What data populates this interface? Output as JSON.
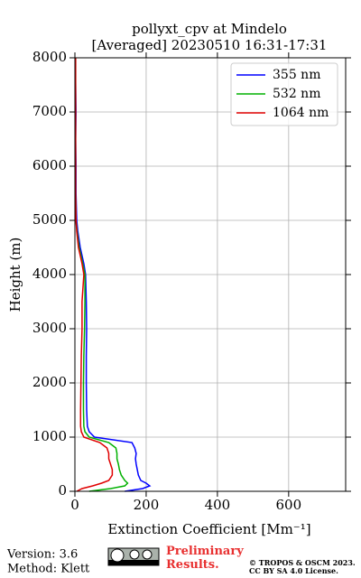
{
  "chart_data": {
    "type": "profile",
    "title": "pollyxt_cpv at Mindelo",
    "subtitle": "[Averaged] 20230510 16:31-17:31",
    "xlabel": "Extinction Coefficient [Mm⁻¹]",
    "ylabel": "Height (m)",
    "xlim": [
      0,
      760
    ],
    "xticks": [
      0,
      200,
      400,
      600
    ],
    "ylim": [
      0,
      8000
    ],
    "yticks": [
      0,
      1000,
      2000,
      3000,
      4000,
      5000,
      6000,
      7000,
      8000
    ],
    "grid": true,
    "legend": "upper right",
    "y": [
      0,
      50,
      100,
      150,
      200,
      300,
      400,
      500,
      600,
      700,
      800,
      900,
      1000,
      1100,
      1200,
      1500,
      2000,
      2500,
      3000,
      3500,
      4000,
      4200,
      4500,
      4800,
      5000,
      5500,
      6000,
      6500,
      7000,
      7500,
      8000
    ],
    "series": [
      {
        "name": "355 nm",
        "color": "#0000ff",
        "values": [
          140,
          190,
          210,
          200,
          185,
          178,
          175,
          172,
          170,
          172,
          168,
          160,
          55,
          40,
          35,
          33,
          32,
          32,
          33,
          32,
          30,
          25,
          15,
          8,
          5,
          3,
          3,
          2,
          3,
          2,
          1
        ]
      },
      {
        "name": "532 nm",
        "color": "#00b000",
        "values": [
          40,
          100,
          140,
          148,
          140,
          130,
          125,
          122,
          118,
          118,
          115,
          95,
          40,
          28,
          25,
          24,
          24,
          25,
          27,
          28,
          28,
          22,
          12,
          6,
          3,
          2,
          2,
          2,
          2,
          2,
          2
        ]
      },
      {
        "name": "1064 nm",
        "color": "#e00000",
        "values": [
          5,
          20,
          50,
          75,
          95,
          105,
          105,
          100,
          95,
          95,
          90,
          70,
          25,
          18,
          16,
          16,
          17,
          18,
          20,
          20,
          25,
          20,
          10,
          5,
          3,
          2,
          2,
          2,
          2,
          2,
          2
        ]
      }
    ]
  },
  "footer": {
    "version": "Version: 3.6",
    "method": "Method: Klett",
    "preliminary": "Preliminary Results.",
    "copyright": "© TROPOS & OSCM 2023.",
    "license": "CC BY SA 4.0 License."
  }
}
